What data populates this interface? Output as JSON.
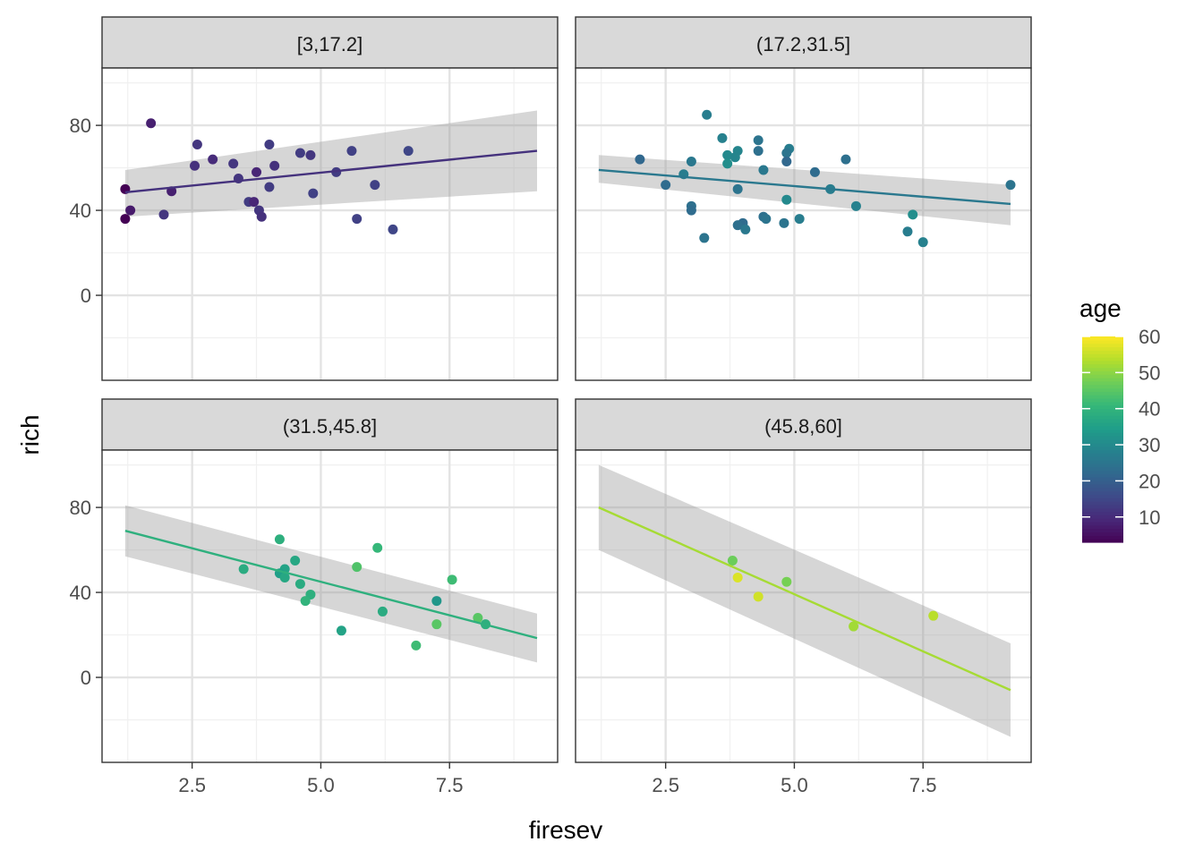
{
  "chart_data": {
    "type": "scatter",
    "facet_variable": "age",
    "xlabel": "firesev",
    "ylabel": "rich",
    "xlim": [
      0.75,
      9.6
    ],
    "ylim": [
      -40,
      107
    ],
    "x_ticks": [
      2.5,
      5.0,
      7.5
    ],
    "x_tick_labels": [
      "2.5",
      "5.0",
      "7.5"
    ],
    "y_ticks": [
      0,
      40,
      80
    ],
    "y_tick_labels": [
      "0",
      "40",
      "80"
    ],
    "grid": true,
    "legend": {
      "title": "age",
      "position": "right",
      "type": "colorbar",
      "range": [
        3,
        60
      ],
      "ticks": [
        10,
        20,
        30,
        40,
        50,
        60
      ],
      "tick_labels": [
        "10",
        "20",
        "30",
        "40",
        "50",
        "60"
      ]
    },
    "panels": [
      {
        "label": "[3,17.2]",
        "fit": {
          "x": [
            1.2,
            9.2
          ],
          "y": [
            48.5,
            68
          ],
          "lower": [
            37,
            49
          ],
          "upper": [
            59,
            87
          ]
        },
        "points": [
          {
            "x": 1.7,
            "y": 81,
            "age": 8
          },
          {
            "x": 2.6,
            "y": 71,
            "age": 12
          },
          {
            "x": 4.0,
            "y": 71,
            "age": 13
          },
          {
            "x": 6.7,
            "y": 68,
            "age": 15
          },
          {
            "x": 5.6,
            "y": 68,
            "age": 14
          },
          {
            "x": 4.6,
            "y": 67,
            "age": 13
          },
          {
            "x": 4.8,
            "y": 66,
            "age": 12
          },
          {
            "x": 2.9,
            "y": 64,
            "age": 10
          },
          {
            "x": 3.3,
            "y": 62,
            "age": 12
          },
          {
            "x": 2.55,
            "y": 61,
            "age": 11
          },
          {
            "x": 4.1,
            "y": 61,
            "age": 11
          },
          {
            "x": 5.3,
            "y": 58,
            "age": 13
          },
          {
            "x": 3.75,
            "y": 58,
            "age": 9
          },
          {
            "x": 3.4,
            "y": 55,
            "age": 12
          },
          {
            "x": 6.05,
            "y": 52,
            "age": 14
          },
          {
            "x": 4.0,
            "y": 51,
            "age": 13
          },
          {
            "x": 1.2,
            "y": 50,
            "age": 3
          },
          {
            "x": 2.1,
            "y": 49,
            "age": 8
          },
          {
            "x": 4.85,
            "y": 48,
            "age": 14
          },
          {
            "x": 3.6,
            "y": 44,
            "age": 13
          },
          {
            "x": 3.7,
            "y": 44,
            "age": 9
          },
          {
            "x": 3.8,
            "y": 40,
            "age": 12
          },
          {
            "x": 1.3,
            "y": 40,
            "age": 7
          },
          {
            "x": 1.95,
            "y": 38,
            "age": 12
          },
          {
            "x": 3.85,
            "y": 37,
            "age": 11
          },
          {
            "x": 5.7,
            "y": 36,
            "age": 14
          },
          {
            "x": 1.2,
            "y": 36,
            "age": 3
          },
          {
            "x": 6.4,
            "y": 31,
            "age": 15
          }
        ]
      },
      {
        "label": "(17.2,31.5]",
        "fit": {
          "x": [
            1.2,
            9.2
          ],
          "y": [
            59,
            43
          ],
          "lower": [
            53,
            33
          ],
          "upper": [
            66,
            52
          ]
        },
        "points": [
          {
            "x": 3.3,
            "y": 85,
            "age": 27
          },
          {
            "x": 3.6,
            "y": 74,
            "age": 28
          },
          {
            "x": 4.3,
            "y": 73,
            "age": 25
          },
          {
            "x": 4.9,
            "y": 69,
            "age": 27
          },
          {
            "x": 3.9,
            "y": 68,
            "age": 29
          },
          {
            "x": 4.3,
            "y": 68,
            "age": 24
          },
          {
            "x": 4.85,
            "y": 67,
            "age": 25
          },
          {
            "x": 3.7,
            "y": 66,
            "age": 30
          },
          {
            "x": 3.85,
            "y": 65,
            "age": 29
          },
          {
            "x": 2.0,
            "y": 64,
            "age": 22
          },
          {
            "x": 6.0,
            "y": 64,
            "age": 24
          },
          {
            "x": 3.0,
            "y": 63,
            "age": 26
          },
          {
            "x": 4.85,
            "y": 63,
            "age": 22
          },
          {
            "x": 3.7,
            "y": 62,
            "age": 31
          },
          {
            "x": 4.4,
            "y": 59,
            "age": 26
          },
          {
            "x": 5.4,
            "y": 58,
            "age": 23
          },
          {
            "x": 2.85,
            "y": 57,
            "age": 27
          },
          {
            "x": 9.2,
            "y": 52,
            "age": 25
          },
          {
            "x": 2.5,
            "y": 52,
            "age": 23
          },
          {
            "x": 5.7,
            "y": 50,
            "age": 27
          },
          {
            "x": 3.9,
            "y": 50,
            "age": 25
          },
          {
            "x": 4.85,
            "y": 45,
            "age": 30
          },
          {
            "x": 6.2,
            "y": 42,
            "age": 28
          },
          {
            "x": 3.0,
            "y": 42,
            "age": 24
          },
          {
            "x": 3.0,
            "y": 40,
            "age": 23
          },
          {
            "x": 7.3,
            "y": 38,
            "age": 31
          },
          {
            "x": 4.4,
            "y": 37,
            "age": 24
          },
          {
            "x": 4.45,
            "y": 36,
            "age": 25
          },
          {
            "x": 5.1,
            "y": 36,
            "age": 27
          },
          {
            "x": 4.8,
            "y": 34,
            "age": 25
          },
          {
            "x": 4.0,
            "y": 34,
            "age": 23
          },
          {
            "x": 3.9,
            "y": 33,
            "age": 24
          },
          {
            "x": 4.05,
            "y": 31,
            "age": 26
          },
          {
            "x": 7.2,
            "y": 30,
            "age": 27
          },
          {
            "x": 3.25,
            "y": 27,
            "age": 25
          },
          {
            "x": 7.5,
            "y": 25,
            "age": 28
          }
        ]
      },
      {
        "label": "(31.5,45.8]",
        "fit": {
          "x": [
            1.2,
            9.2
          ],
          "y": [
            69,
            18.5
          ],
          "lower": [
            57,
            7
          ],
          "upper": [
            81,
            30
          ]
        },
        "points": [
          {
            "x": 4.2,
            "y": 65,
            "age": 39
          },
          {
            "x": 6.1,
            "y": 61,
            "age": 41
          },
          {
            "x": 4.5,
            "y": 55,
            "age": 37
          },
          {
            "x": 5.7,
            "y": 52,
            "age": 44
          },
          {
            "x": 3.5,
            "y": 51,
            "age": 38
          },
          {
            "x": 4.3,
            "y": 51,
            "age": 36
          },
          {
            "x": 4.2,
            "y": 49,
            "age": 35
          },
          {
            "x": 4.3,
            "y": 47,
            "age": 37
          },
          {
            "x": 7.55,
            "y": 46,
            "age": 42
          },
          {
            "x": 4.6,
            "y": 44,
            "age": 38
          },
          {
            "x": 4.8,
            "y": 39,
            "age": 39
          },
          {
            "x": 4.7,
            "y": 36,
            "age": 40
          },
          {
            "x": 7.25,
            "y": 36,
            "age": 33
          },
          {
            "x": 6.2,
            "y": 31,
            "age": 38
          },
          {
            "x": 8.05,
            "y": 28,
            "age": 45
          },
          {
            "x": 7.25,
            "y": 25,
            "age": 45
          },
          {
            "x": 8.2,
            "y": 25,
            "age": 39
          },
          {
            "x": 5.4,
            "y": 22,
            "age": 36
          },
          {
            "x": 6.85,
            "y": 15,
            "age": 42
          }
        ]
      },
      {
        "label": "(45.8,60]",
        "fit": {
          "x": [
            1.2,
            9.2
          ],
          "y": [
            80,
            -6
          ],
          "lower": [
            60,
            -28
          ],
          "upper": [
            100,
            16
          ]
        },
        "points": [
          {
            "x": 3.8,
            "y": 55,
            "age": 47
          },
          {
            "x": 3.9,
            "y": 47,
            "age": 57
          },
          {
            "x": 4.85,
            "y": 45,
            "age": 48
          },
          {
            "x": 4.3,
            "y": 38,
            "age": 56
          },
          {
            "x": 7.7,
            "y": 29,
            "age": 54
          },
          {
            "x": 6.15,
            "y": 24,
            "age": 52
          }
        ]
      }
    ]
  }
}
